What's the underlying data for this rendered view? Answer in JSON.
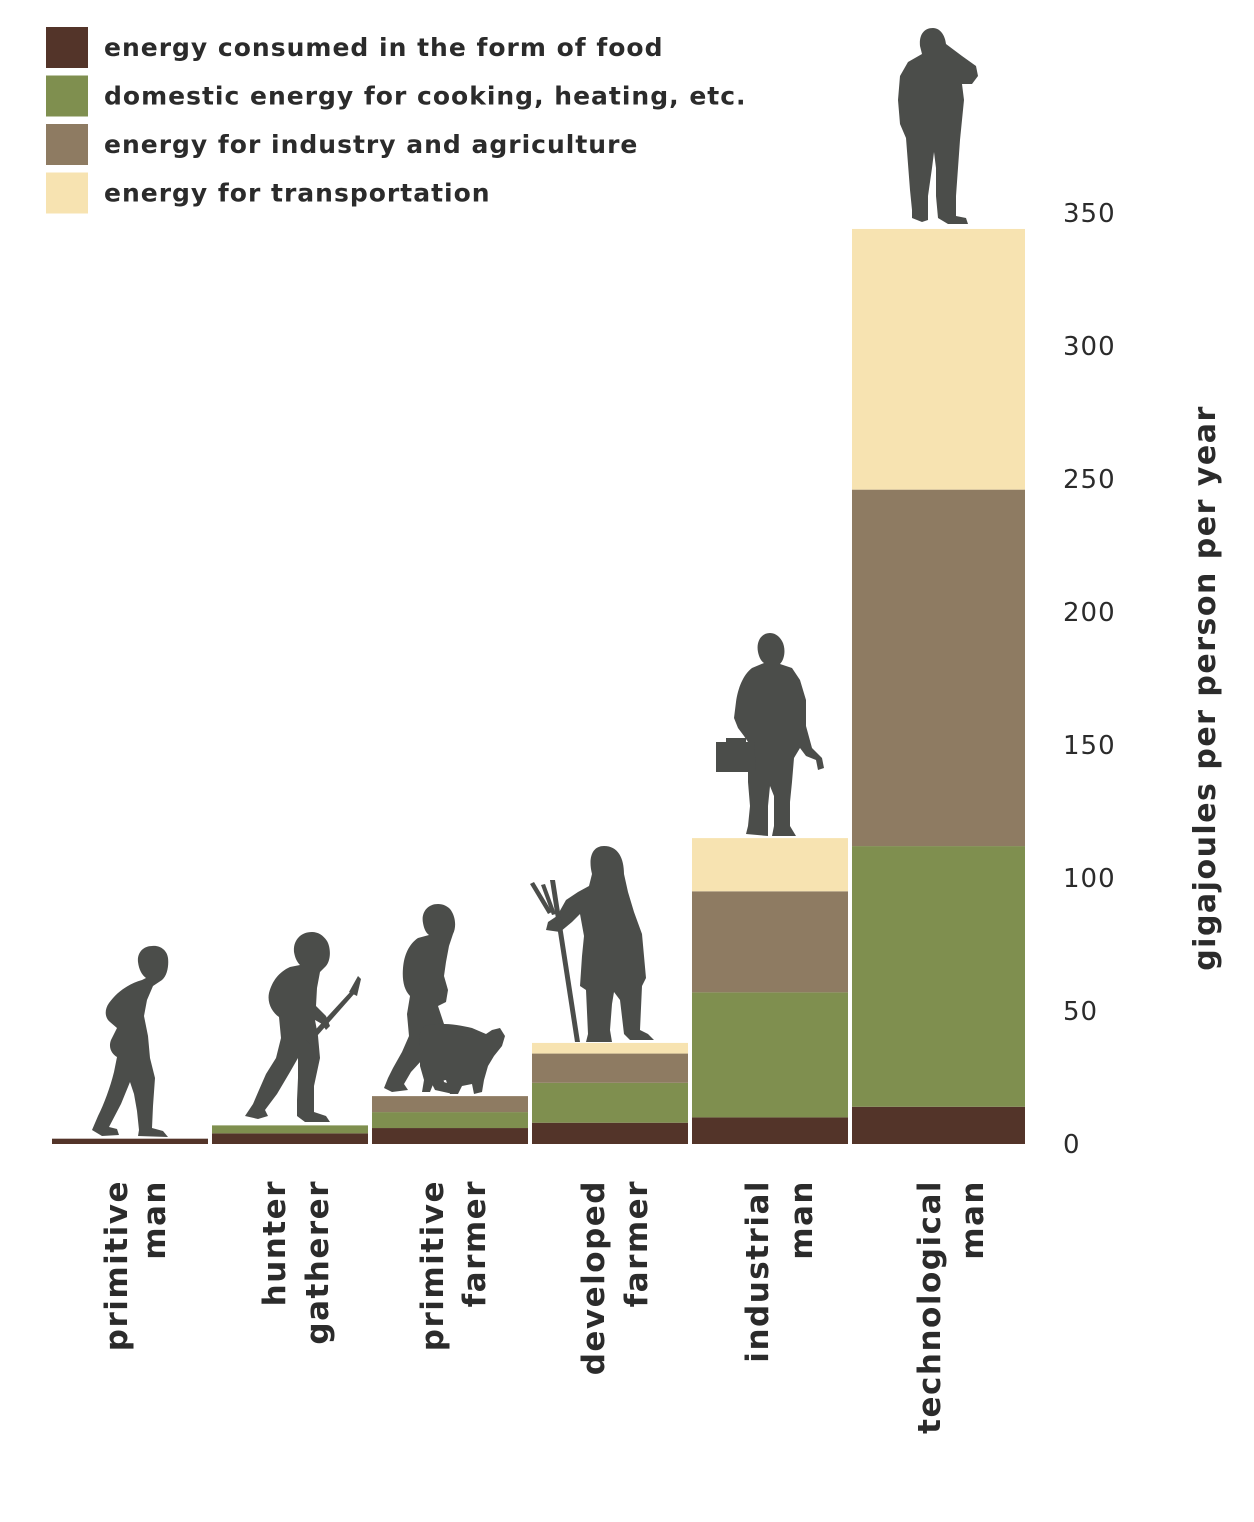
{
  "chart_data": {
    "type": "bar",
    "stacked": true,
    "categories": [
      {
        "line1": "primitive",
        "line2": "man"
      },
      {
        "line1": "hunter",
        "line2": "gatherer"
      },
      {
        "line1": "primitive",
        "line2": "farmer"
      },
      {
        "line1": "developed",
        "line2": "farmer"
      },
      {
        "line1": "industrial",
        "line2": "man"
      },
      {
        "line1": "technological",
        "line2": "man"
      }
    ],
    "series": [
      {
        "name": "energy consumed in the form of food",
        "color": "#533429",
        "values": [
          2,
          4,
          6,
          8,
          10,
          14
        ]
      },
      {
        "name": "domestic energy for cooking, heating, etc.",
        "color": "#7f8f4f",
        "values": [
          0,
          3,
          6,
          15,
          47,
          98
        ]
      },
      {
        "name": "energy for industry and agriculture",
        "color": "#8e7b62",
        "values": [
          0,
          0,
          6,
          11,
          38,
          134
        ]
      },
      {
        "name": "energy for transportation",
        "color": "#f7e3b1",
        "values": [
          0,
          0,
          0,
          4,
          20,
          98
        ]
      }
    ],
    "yticks": [
      0,
      50,
      100,
      150,
      200,
      250,
      300,
      350
    ],
    "ylim": [
      0,
      350
    ],
    "ylabel": "gigajoules per person per year",
    "xlabel": "",
    "title": "",
    "legend_position": "top-left"
  }
}
